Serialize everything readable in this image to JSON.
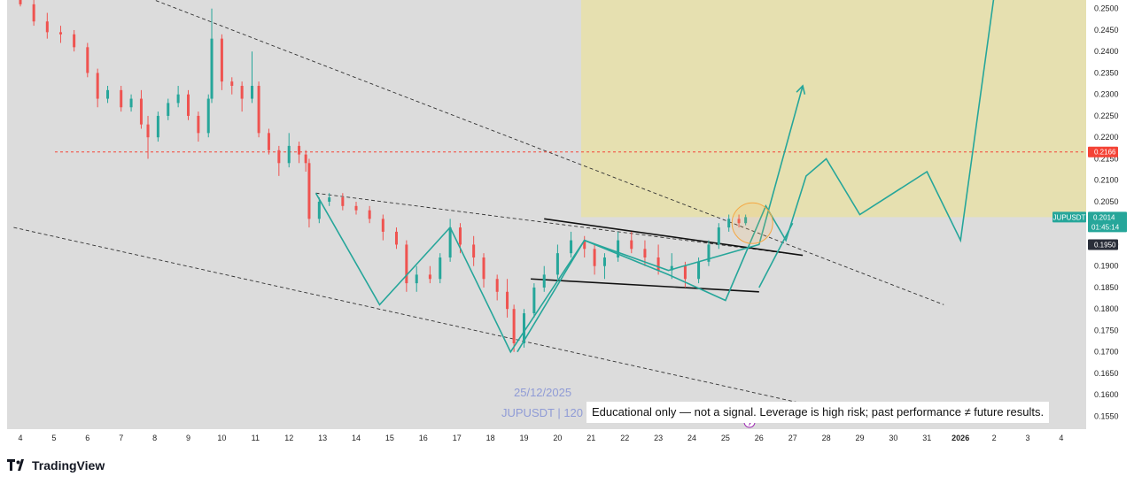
{
  "chart_data": {
    "type": "candlestick",
    "symbol": "JUPUSDT",
    "watermark_date": "25/12/2025",
    "watermark_symbol": "JUPUSDT | 120",
    "y_axis": {
      "range": [
        0.152,
        0.252
      ],
      "ticks": [
        "0.2500",
        "0.2450",
        "0.2400",
        "0.2350",
        "0.2300",
        "0.2250",
        "0.2200",
        "0.2150",
        "0.2100",
        "0.2050",
        "0.2000",
        "0.1950",
        "0.1900",
        "0.1850",
        "0.1800",
        "0.1750",
        "0.1700",
        "0.1650",
        "0.1600",
        "0.1550"
      ]
    },
    "x_axis": {
      "ticks": [
        {
          "label": "4",
          "day": 4
        },
        {
          "label": "5",
          "day": 5
        },
        {
          "label": "6",
          "day": 6
        },
        {
          "label": "7",
          "day": 7
        },
        {
          "label": "8",
          "day": 8
        },
        {
          "label": "9",
          "day": 9
        },
        {
          "label": "10",
          "day": 10
        },
        {
          "label": "11",
          "day": 11
        },
        {
          "label": "12",
          "day": 12
        },
        {
          "label": "13",
          "day": 13
        },
        {
          "label": "14",
          "day": 14
        },
        {
          "label": "15",
          "day": 15
        },
        {
          "label": "16",
          "day": 16
        },
        {
          "label": "17",
          "day": 17
        },
        {
          "label": "18",
          "day": 18
        },
        {
          "label": "19",
          "day": 19
        },
        {
          "label": "20",
          "day": 20
        },
        {
          "label": "21",
          "day": 21
        },
        {
          "label": "22",
          "day": 22
        },
        {
          "label": "23",
          "day": 23
        },
        {
          "label": "24",
          "day": 24
        },
        {
          "label": "25",
          "day": 25
        },
        {
          "label": "26",
          "day": 26
        },
        {
          "label": "27",
          "day": 27
        },
        {
          "label": "28",
          "day": 28
        },
        {
          "label": "29",
          "day": 29
        },
        {
          "label": "30",
          "day": 30
        },
        {
          "label": "31",
          "day": 31
        },
        {
          "label": "2026",
          "day": 32,
          "bold": true
        },
        {
          "label": "2",
          "day": 33
        },
        {
          "label": "3",
          "day": 34
        },
        {
          "label": "4",
          "day": 35
        }
      ]
    },
    "candles": [
      [
        4.0,
        0.253,
        0.2545,
        0.2505,
        0.251
      ],
      [
        4.4,
        0.251,
        0.252,
        0.246,
        0.247
      ],
      [
        4.8,
        0.247,
        0.249,
        0.243,
        0.2445
      ],
      [
        5.2,
        0.2445,
        0.246,
        0.242,
        0.244
      ],
      [
        5.6,
        0.244,
        0.245,
        0.24,
        0.241
      ],
      [
        6.0,
        0.241,
        0.242,
        0.234,
        0.235
      ],
      [
        6.3,
        0.235,
        0.236,
        0.227,
        0.229
      ],
      [
        6.6,
        0.229,
        0.232,
        0.228,
        0.231
      ],
      [
        7.0,
        0.231,
        0.232,
        0.226,
        0.227
      ],
      [
        7.3,
        0.227,
        0.23,
        0.226,
        0.229
      ],
      [
        7.6,
        0.229,
        0.231,
        0.222,
        0.223
      ],
      [
        7.8,
        0.223,
        0.225,
        0.215,
        0.22
      ],
      [
        8.1,
        0.22,
        0.226,
        0.219,
        0.225
      ],
      [
        8.4,
        0.225,
        0.229,
        0.224,
        0.228
      ],
      [
        8.7,
        0.228,
        0.232,
        0.227,
        0.23
      ],
      [
        9.0,
        0.23,
        0.231,
        0.224,
        0.225
      ],
      [
        9.3,
        0.225,
        0.226,
        0.219,
        0.221
      ],
      [
        9.6,
        0.221,
        0.23,
        0.22,
        0.229
      ],
      [
        9.7,
        0.229,
        0.25,
        0.228,
        0.243
      ],
      [
        10.0,
        0.243,
        0.244,
        0.231,
        0.233
      ],
      [
        10.3,
        0.233,
        0.234,
        0.23,
        0.232
      ],
      [
        10.6,
        0.232,
        0.233,
        0.226,
        0.229
      ],
      [
        10.9,
        0.229,
        0.24,
        0.228,
        0.232
      ],
      [
        11.1,
        0.232,
        0.233,
        0.22,
        0.221
      ],
      [
        11.4,
        0.221,
        0.222,
        0.216,
        0.217
      ],
      [
        11.7,
        0.217,
        0.218,
        0.211,
        0.214
      ],
      [
        12.0,
        0.214,
        0.221,
        0.213,
        0.218
      ],
      [
        12.3,
        0.218,
        0.219,
        0.214,
        0.216
      ],
      [
        12.5,
        0.216,
        0.217,
        0.212,
        0.214
      ],
      [
        12.6,
        0.214,
        0.215,
        0.199,
        0.201
      ],
      [
        12.9,
        0.201,
        0.206,
        0.2,
        0.205
      ],
      [
        13.2,
        0.205,
        0.207,
        0.204,
        0.206
      ],
      [
        13.6,
        0.206,
        0.207,
        0.203,
        0.204
      ],
      [
        14.0,
        0.204,
        0.205,
        0.202,
        0.203
      ],
      [
        14.4,
        0.203,
        0.204,
        0.2,
        0.201
      ],
      [
        14.8,
        0.201,
        0.202,
        0.196,
        0.198
      ],
      [
        15.2,
        0.198,
        0.199,
        0.194,
        0.195
      ],
      [
        15.5,
        0.195,
        0.196,
        0.184,
        0.186
      ],
      [
        15.8,
        0.186,
        0.19,
        0.184,
        0.188
      ],
      [
        16.2,
        0.188,
        0.19,
        0.186,
        0.187
      ],
      [
        16.5,
        0.187,
        0.193,
        0.186,
        0.192
      ],
      [
        16.8,
        0.192,
        0.201,
        0.191,
        0.199
      ],
      [
        17.1,
        0.199,
        0.2,
        0.193,
        0.195
      ],
      [
        17.5,
        0.195,
        0.197,
        0.19,
        0.192
      ],
      [
        17.8,
        0.192,
        0.193,
        0.185,
        0.187
      ],
      [
        18.2,
        0.187,
        0.188,
        0.182,
        0.184
      ],
      [
        18.5,
        0.184,
        0.187,
        0.178,
        0.18
      ],
      [
        18.7,
        0.18,
        0.181,
        0.17,
        0.172
      ],
      [
        19.0,
        0.172,
        0.18,
        0.171,
        0.179
      ],
      [
        19.3,
        0.179,
        0.186,
        0.178,
        0.185
      ],
      [
        19.6,
        0.185,
        0.19,
        0.184,
        0.188
      ],
      [
        20.0,
        0.188,
        0.195,
        0.187,
        0.193
      ],
      [
        20.4,
        0.193,
        0.198,
        0.192,
        0.196
      ],
      [
        20.8,
        0.196,
        0.197,
        0.192,
        0.194
      ],
      [
        21.1,
        0.194,
        0.195,
        0.188,
        0.19
      ],
      [
        21.4,
        0.19,
        0.193,
        0.187,
        0.192
      ],
      [
        21.8,
        0.192,
        0.198,
        0.191,
        0.196
      ],
      [
        22.2,
        0.196,
        0.198,
        0.193,
        0.194
      ],
      [
        22.6,
        0.194,
        0.196,
        0.19,
        0.192
      ],
      [
        23.0,
        0.192,
        0.195,
        0.188,
        0.189
      ],
      [
        23.4,
        0.189,
        0.193,
        0.187,
        0.19
      ],
      [
        23.8,
        0.19,
        0.191,
        0.185,
        0.187
      ],
      [
        24.2,
        0.187,
        0.192,
        0.186,
        0.191
      ],
      [
        24.5,
        0.191,
        0.196,
        0.19,
        0.195
      ],
      [
        24.8,
        0.195,
        0.2,
        0.194,
        0.199
      ],
      [
        25.1,
        0.199,
        0.202,
        0.198,
        0.201
      ],
      [
        25.4,
        0.201,
        0.202,
        0.199,
        0.2
      ],
      [
        25.6,
        0.2,
        0.202,
        0.1995,
        0.2014
      ]
    ],
    "levels": {
      "red_dashed": 0.2166,
      "last_price": 0.2014,
      "support": 0.195
    },
    "price_tags": [
      {
        "label": "0.2166",
        "price": 0.2166,
        "color": "#f44336"
      },
      {
        "label": "0.1950",
        "price": 0.195,
        "color": "#2a2e39"
      }
    ],
    "current_tag": {
      "symbol": "JUPUSDT",
      "price_label": "0.2014",
      "countdown": "01:45:14",
      "color": "#26a69a"
    },
    "target_zone": {
      "day_start": 20.7,
      "top": 0.252,
      "bottom": 0.2014
    },
    "trendlines": [
      {
        "style": "dashed",
        "points": [
          [
            7.0,
            0.255
          ],
          [
            31.5,
            0.181
          ]
        ]
      },
      {
        "style": "dashed",
        "points": [
          [
            3.8,
            0.199
          ],
          [
            29.0,
            0.155
          ]
        ]
      },
      {
        "style": "dashed",
        "points": [
          [
            12.8,
            0.207
          ],
          [
            27.3,
            0.1925
          ]
        ]
      },
      {
        "style": "solid",
        "points": [
          [
            19.6,
            0.201
          ],
          [
            27.3,
            0.1925
          ]
        ]
      },
      {
        "style": "solid",
        "points": [
          [
            19.2,
            0.187
          ],
          [
            26.0,
            0.184
          ]
        ]
      }
    ],
    "projection_paths": [
      [
        [
          12.8,
          0.207
        ],
        [
          14.7,
          0.181
        ],
        [
          16.8,
          0.199
        ],
        [
          18.6,
          0.17
        ],
        [
          20.8,
          0.196
        ],
        [
          23.3,
          0.188
        ],
        [
          25.0,
          0.182
        ],
        [
          26.2,
          0.204
        ],
        [
          26.8,
          0.196
        ],
        [
          27.4,
          0.211
        ],
        [
          28.0,
          0.215
        ],
        [
          29.0,
          0.202
        ],
        [
          31.0,
          0.212
        ],
        [
          32.0,
          0.196
        ],
        [
          33.0,
          0.253
        ]
      ],
      [
        [
          18.8,
          0.17
        ],
        [
          20.8,
          0.196
        ],
        [
          23.3,
          0.189
        ],
        [
          26.0,
          0.195
        ],
        [
          27.3,
          0.232
        ]
      ],
      [
        [
          26.0,
          0.185
        ],
        [
          27.0,
          0.2
        ]
      ]
    ],
    "highlight_circle": {
      "day": 25.8,
      "price": 0.2
    }
  },
  "disclaimer": "Educational only — not a signal. Leverage is high risk; past performance ≠ future results.",
  "branding": {
    "logo_text": "TradingView",
    "icon": "tradingview-logo-icon"
  }
}
